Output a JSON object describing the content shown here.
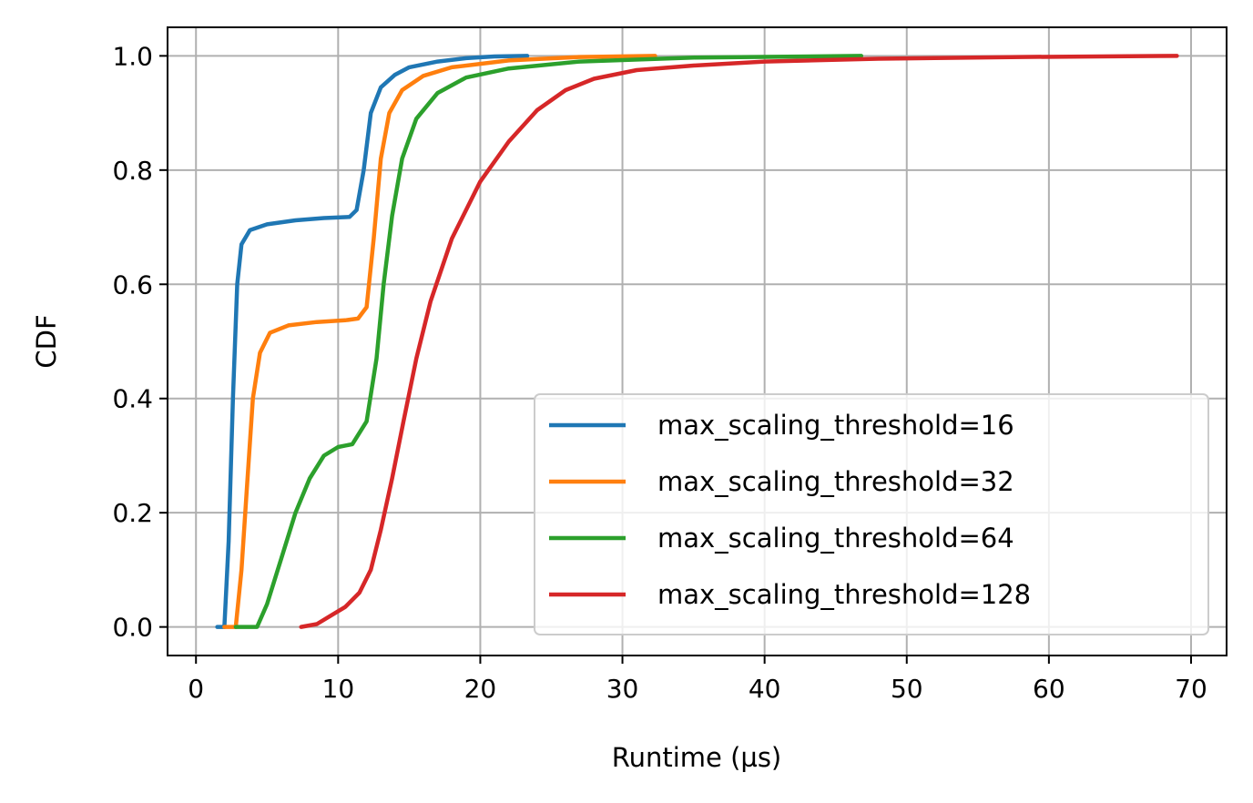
{
  "chart_data": {
    "type": "line",
    "title": "",
    "xlabel": "Runtime (µs)",
    "ylabel": "CDF",
    "xlim": [
      -2,
      72.5
    ],
    "ylim": [
      -0.05,
      1.05
    ],
    "xticks": [
      0,
      10,
      20,
      30,
      40,
      50,
      60,
      70
    ],
    "xtick_labels": [
      "0",
      "10",
      "20",
      "30",
      "40",
      "50",
      "60",
      "70"
    ],
    "yticks": [
      0.0,
      0.2,
      0.4,
      0.6,
      0.8,
      1.0
    ],
    "ytick_labels": [
      "0.0",
      "0.2",
      "0.4",
      "0.6",
      "0.8",
      "1.0"
    ],
    "grid": true,
    "legend_position": "lower-right",
    "series": [
      {
        "name": "max_scaling_threshold=16",
        "color": "#1f77b4",
        "x": [
          1.5,
          2.0,
          2.3,
          2.6,
          2.9,
          3.2,
          3.8,
          5,
          7,
          9,
          10.8,
          11.3,
          11.8,
          12.3,
          13,
          14,
          15,
          17,
          19,
          21,
          23.3
        ],
        "y": [
          0.0,
          0.0,
          0.15,
          0.4,
          0.6,
          0.67,
          0.695,
          0.705,
          0.712,
          0.716,
          0.718,
          0.73,
          0.8,
          0.9,
          0.945,
          0.967,
          0.98,
          0.99,
          0.996,
          0.999,
          1.0
        ]
      },
      {
        "name": "max_scaling_threshold=32",
        "color": "#ff7f0e",
        "x": [
          2.0,
          2.8,
          3.2,
          3.6,
          4.0,
          4.5,
          5.2,
          6.5,
          8.5,
          10.5,
          11.4,
          12.0,
          12.5,
          13.0,
          13.6,
          14.5,
          16,
          18,
          22,
          27,
          32.3
        ],
        "y": [
          0.0,
          0.0,
          0.1,
          0.25,
          0.4,
          0.48,
          0.515,
          0.528,
          0.534,
          0.537,
          0.54,
          0.56,
          0.68,
          0.82,
          0.9,
          0.94,
          0.965,
          0.98,
          0.992,
          0.998,
          1.0
        ]
      },
      {
        "name": "max_scaling_threshold=64",
        "color": "#2ca02c",
        "x": [
          2.8,
          4.3,
          5.0,
          6.0,
          7.0,
          8.0,
          9.0,
          10.0,
          11.0,
          12.0,
          12.7,
          13.2,
          13.8,
          14.5,
          15.5,
          17,
          19,
          22,
          27,
          35,
          46.8
        ],
        "y": [
          0.0,
          0.0,
          0.04,
          0.12,
          0.2,
          0.26,
          0.3,
          0.315,
          0.32,
          0.36,
          0.47,
          0.6,
          0.72,
          0.82,
          0.89,
          0.935,
          0.962,
          0.978,
          0.99,
          0.997,
          1.0
        ]
      },
      {
        "name": "max_scaling_threshold=128",
        "color": "#d62728",
        "x": [
          7.4,
          8.5,
          9.5,
          10.5,
          11.5,
          12.3,
          13.0,
          13.8,
          14.6,
          15.5,
          16.5,
          18.0,
          20.0,
          22.0,
          24.0,
          26.0,
          28.0,
          31.0,
          35.0,
          40.0,
          48.0,
          58.0,
          69.0
        ],
        "y": [
          0.0,
          0.005,
          0.02,
          0.035,
          0.06,
          0.1,
          0.17,
          0.26,
          0.36,
          0.47,
          0.57,
          0.68,
          0.78,
          0.85,
          0.905,
          0.94,
          0.96,
          0.975,
          0.983,
          0.99,
          0.995,
          0.998,
          1.0
        ]
      }
    ]
  }
}
